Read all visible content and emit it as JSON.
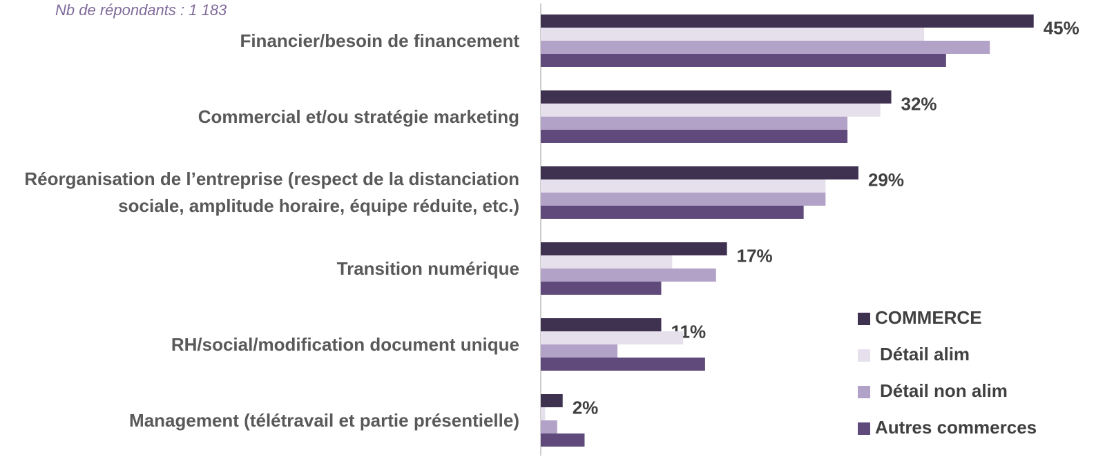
{
  "chart_data": {
    "type": "hbar",
    "subtitle": "Nb de répondants : 1 183",
    "categories": [
      "Financier/besoin de financement",
      "Commercial et/ou stratégie marketing",
      "Réorganisation de l’entreprise (respect de la distanciation sociale, amplitude horaire, équipe réduite, etc.)",
      "Transition numérique",
      "RH/social/modification document unique",
      "Management (télétravail et partie présentielle)"
    ],
    "series": [
      {
        "name": "COMMERCE",
        "color": "#3f3150",
        "values": [
          45,
          32,
          29,
          17,
          11,
          2
        ],
        "value_labels": [
          "45%",
          "32%",
          "29%",
          "17%",
          "11%",
          "2%"
        ]
      },
      {
        "name": "Détail alim",
        "color": "#e6e0ec",
        "values": [
          35,
          31,
          26,
          12,
          13,
          0.4
        ]
      },
      {
        "name": "Détail non alim",
        "color": "#b3a2c7",
        "values": [
          41,
          28,
          26,
          16,
          7,
          1.5
        ]
      },
      {
        "name": "Autres commerces",
        "color": "#604a7b",
        "values": [
          37,
          28,
          24,
          11,
          15,
          4
        ]
      }
    ],
    "xlim": [
      0,
      50
    ]
  }
}
